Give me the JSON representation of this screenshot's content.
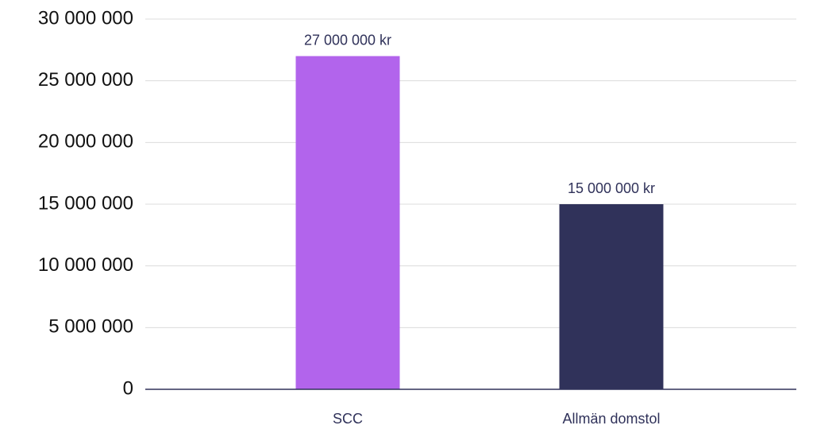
{
  "chart_data": {
    "type": "bar",
    "categories": [
      "SCC",
      "Allmän domstol"
    ],
    "values": [
      27000000,
      15000000
    ],
    "value_labels": [
      "27 000 000 kr",
      "15 000 000 kr"
    ],
    "colors": [
      "#b264ec",
      "#30325a"
    ],
    "ylim": [
      0,
      30000000
    ],
    "yticks": [
      0,
      {
        "value": 5000000,
        "label": "5 000 000"
      },
      {
        "value": 10000000,
        "label": "10 000 000"
      },
      {
        "value": 15000000,
        "label": "15 000 000"
      },
      {
        "value": 20000000,
        "label": "20 000 000"
      },
      {
        "value": 25000000,
        "label": "25 000 000"
      },
      {
        "value": 30000000,
        "label": "30 000 000"
      }
    ],
    "grid": true
  }
}
